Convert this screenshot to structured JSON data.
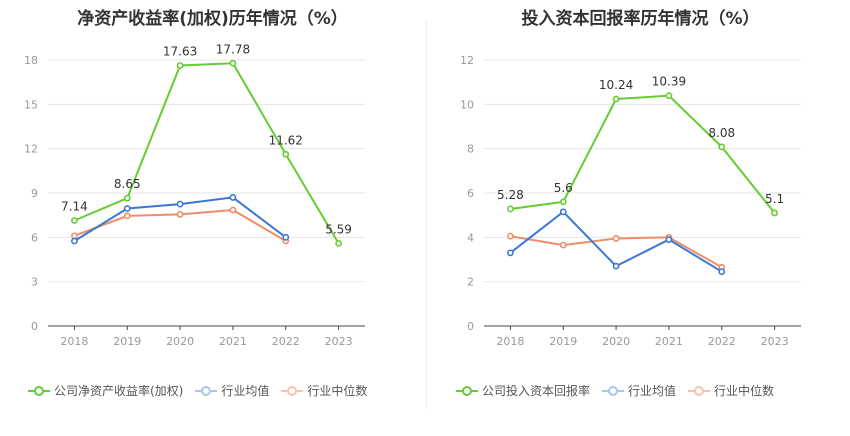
{
  "chart_data": [
    {
      "id": "roe",
      "type": "line",
      "title": "净资产收益率(加权)历年情况（%）",
      "categories": [
        "2018",
        "2019",
        "2020",
        "2021",
        "2022",
        "2023"
      ],
      "ylim": [
        0,
        18
      ],
      "yticks": [
        0,
        3,
        6,
        9,
        12,
        15,
        18
      ],
      "grid": true,
      "legend_position": "bottom-left",
      "series": [
        {
          "name": "公司净资产收益率(加权)",
          "color": "#66cc33",
          "values": [
            7.14,
            8.65,
            17.63,
            17.78,
            11.62,
            5.59
          ],
          "labels": [
            "7.14",
            "8.65",
            "17.63",
            "17.78",
            "11.62",
            "5.59"
          ]
        },
        {
          "name": "行业均值",
          "color": "#3a78d8",
          "values": [
            5.75,
            7.95,
            8.25,
            8.7,
            6.0,
            null
          ],
          "labels": null
        },
        {
          "name": "行业中位数",
          "color": "#f08c68",
          "values": [
            6.1,
            7.45,
            7.55,
            7.85,
            5.75,
            null
          ],
          "labels": null
        }
      ]
    },
    {
      "id": "roic",
      "type": "line",
      "title": "投入资本回报率历年情况（%）",
      "categories": [
        "2018",
        "2019",
        "2020",
        "2021",
        "2022",
        "2023"
      ],
      "ylim": [
        0,
        12
      ],
      "yticks": [
        0,
        2,
        4,
        6,
        8,
        10,
        12
      ],
      "grid": true,
      "legend_position": "bottom-left",
      "series": [
        {
          "name": "公司投入资本回报率",
          "color": "#66cc33",
          "values": [
            5.28,
            5.6,
            10.24,
            10.39,
            8.08,
            5.1
          ],
          "labels": [
            "5.28",
            "5.6",
            "10.24",
            "10.39",
            "8.08",
            "5.1"
          ]
        },
        {
          "name": "行业均值",
          "color": "#3a78d8",
          "values": [
            3.3,
            5.15,
            2.7,
            3.9,
            2.45,
            null
          ],
          "labels": null
        },
        {
          "name": "行业中位数",
          "color": "#f08c68",
          "values": [
            4.05,
            3.65,
            3.95,
            4.0,
            2.65,
            null
          ],
          "labels": null
        }
      ]
    }
  ]
}
